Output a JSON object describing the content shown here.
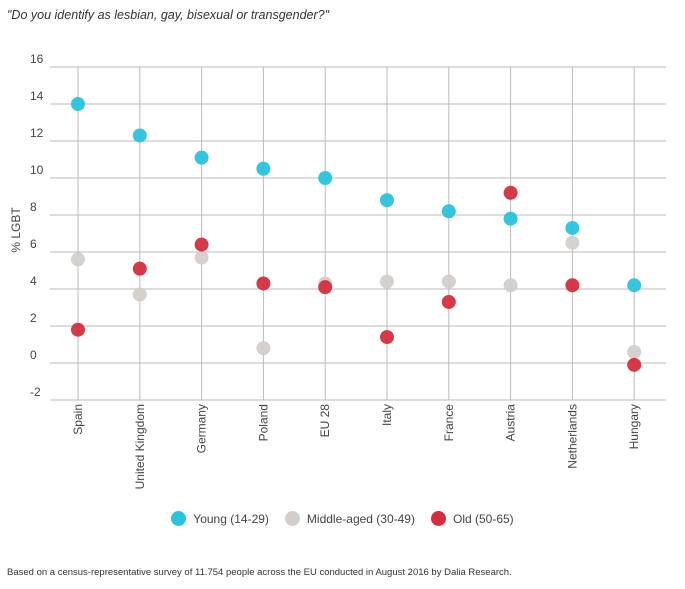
{
  "question": "\"Do you identify as lesbian, gay, bisexual or transgender?\"",
  "source": "Based on a census-representative survey of 11.754 people across the EU conducted in August 2016 by Dalia Research.",
  "colors": {
    "young": "#29c3dc",
    "middle": "#d2cfcb",
    "old": "#d42e3e",
    "grid": "#bbbbbb"
  },
  "chart_data": {
    "type": "scatter",
    "title": "\"Do you identify as lesbian, gay, bisexual or transgender?\"",
    "xlabel": "",
    "ylabel": "% LGBT",
    "ylim": [
      -2,
      16
    ],
    "yticks": [
      "16",
      "14",
      "12",
      "10",
      "8",
      "6",
      "4",
      "2",
      "0",
      "-2"
    ],
    "ytick_values": [
      16,
      14,
      12,
      10,
      8,
      6,
      4,
      2,
      0,
      -2
    ],
    "grid": true,
    "legend_position": "bottom",
    "categories": [
      "Spain",
      "United Kingdom",
      "Germany",
      "Poland",
      "EU 28",
      "Italy",
      "France",
      "Austria",
      "Netherlands",
      "Hungary"
    ],
    "series": [
      {
        "key": "young",
        "name": "Young (14-29)",
        "values": [
          14.0,
          12.3,
          11.1,
          10.5,
          10.0,
          8.8,
          8.2,
          7.8,
          7.3,
          4.2
        ]
      },
      {
        "key": "middle",
        "name": "Middle-aged (30-49)",
        "values": [
          5.6,
          3.7,
          5.7,
          0.8,
          4.3,
          4.4,
          4.4,
          4.2,
          6.5,
          0.6
        ]
      },
      {
        "key": "old",
        "name": "Old (50-65)",
        "values": [
          1.8,
          5.1,
          6.4,
          4.3,
          4.1,
          1.4,
          3.3,
          9.2,
          4.2,
          -0.1
        ]
      }
    ]
  }
}
